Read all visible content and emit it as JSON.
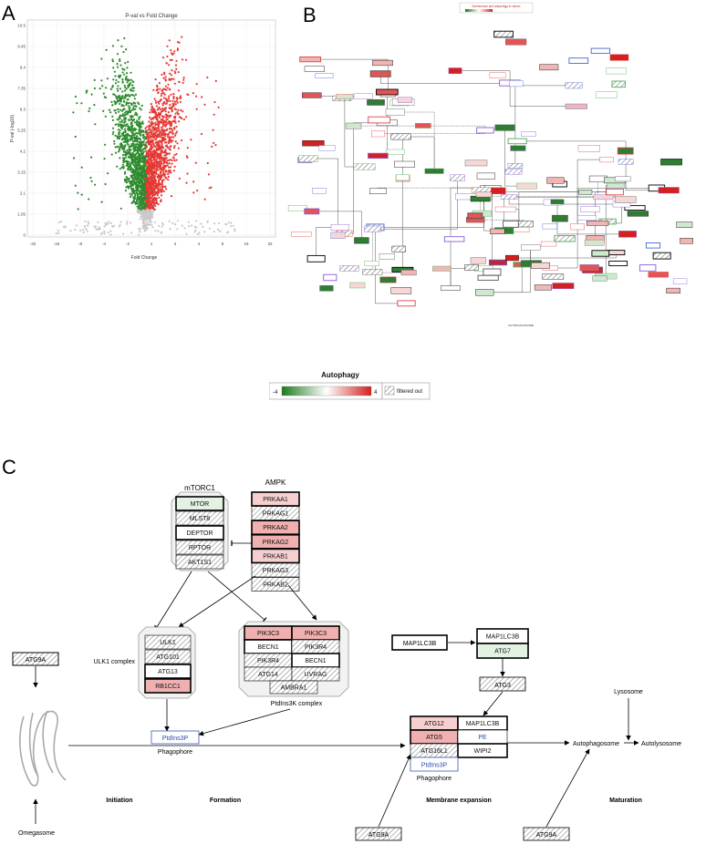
{
  "panels": {
    "a": "A",
    "b": "B",
    "c": "C"
  },
  "volcano": {
    "title": "P-val vs Fold Change",
    "xlabel": "Fold Change",
    "ylabel": "P-val (-log10)",
    "xticks": [
      "-32",
      "-16",
      "-8",
      "-4",
      "-2",
      "1",
      "2",
      "4",
      "8",
      "16",
      "32"
    ],
    "yticks": [
      "10.5",
      "9.45",
      "8.4",
      "7.35",
      "6.3",
      "5.25",
      "4.2",
      "3.15",
      "2.1",
      "1.05",
      "0"
    ],
    "colors": {
      "up": "#e53935",
      "down": "#2e8b2e",
      "ns": "#c8c8c8"
    }
  },
  "network": {
    "title": "Senescence and autophagy in cancer",
    "footer_label": "AUTOPHAGOSOME"
  },
  "legend": {
    "title": "Autophagy",
    "min": "-4",
    "max": "4",
    "filtered": "filtered out",
    "colors": {
      "low": "#1b7a1b",
      "mid": "#ffffff",
      "high": "#d32020"
    }
  },
  "diagram": {
    "mtorc1": {
      "label": "mTORC1",
      "items": [
        "MTOR",
        "MLST8",
        "DEPTOR",
        "RPTOR",
        "AKT1S1"
      ]
    },
    "ampk": {
      "label": "AMPK",
      "items": [
        "PRKAA1",
        "PRKAG1",
        "PRKAA2",
        "PRKAG2",
        "PRKAB1",
        "PRKAG3",
        "PRKAB2"
      ]
    },
    "ulk1": {
      "label": "ULK1 complex",
      "items": [
        "ULK1",
        "ATG101",
        "ATG13",
        "RB1CC1"
      ]
    },
    "pi3k": {
      "label": "PtdIns3K complex",
      "left": [
        "PIK3C3",
        "BECN1",
        "PIK3R4",
        "ATG14"
      ],
      "right": [
        "PIK3C3",
        "PIK3R4",
        "BECN1",
        "UVRAG"
      ],
      "bottom": "AMBRA1"
    },
    "atg9a_left": "ATG9A",
    "omegasome": "Omegasome",
    "ptdins3p": "PtdIns3P",
    "phagophore": "Phagophore",
    "map1lc3b_left": "MAP1LC3B",
    "map1lc3b_atg7": [
      "MAP1LC3B",
      "ATG7"
    ],
    "atg3": "ATG3",
    "expansion": {
      "left": [
        "ATG12",
        "ATG5",
        "ATG16L1"
      ],
      "right": [
        "MAP1LC3B",
        "PE",
        "WIPI2"
      ],
      "bottom": "PtdIns3P",
      "label": "Phagophore"
    },
    "atg9a_mid": "ATG9A",
    "atg9a_right": "ATG9A",
    "autophagosome": "Autophagosome",
    "autolysosome": "Autolysosome",
    "lysosome": "Lysosome",
    "stages": [
      "Initiation",
      "Formation",
      "Membrane expansion",
      "Maturation"
    ]
  }
}
